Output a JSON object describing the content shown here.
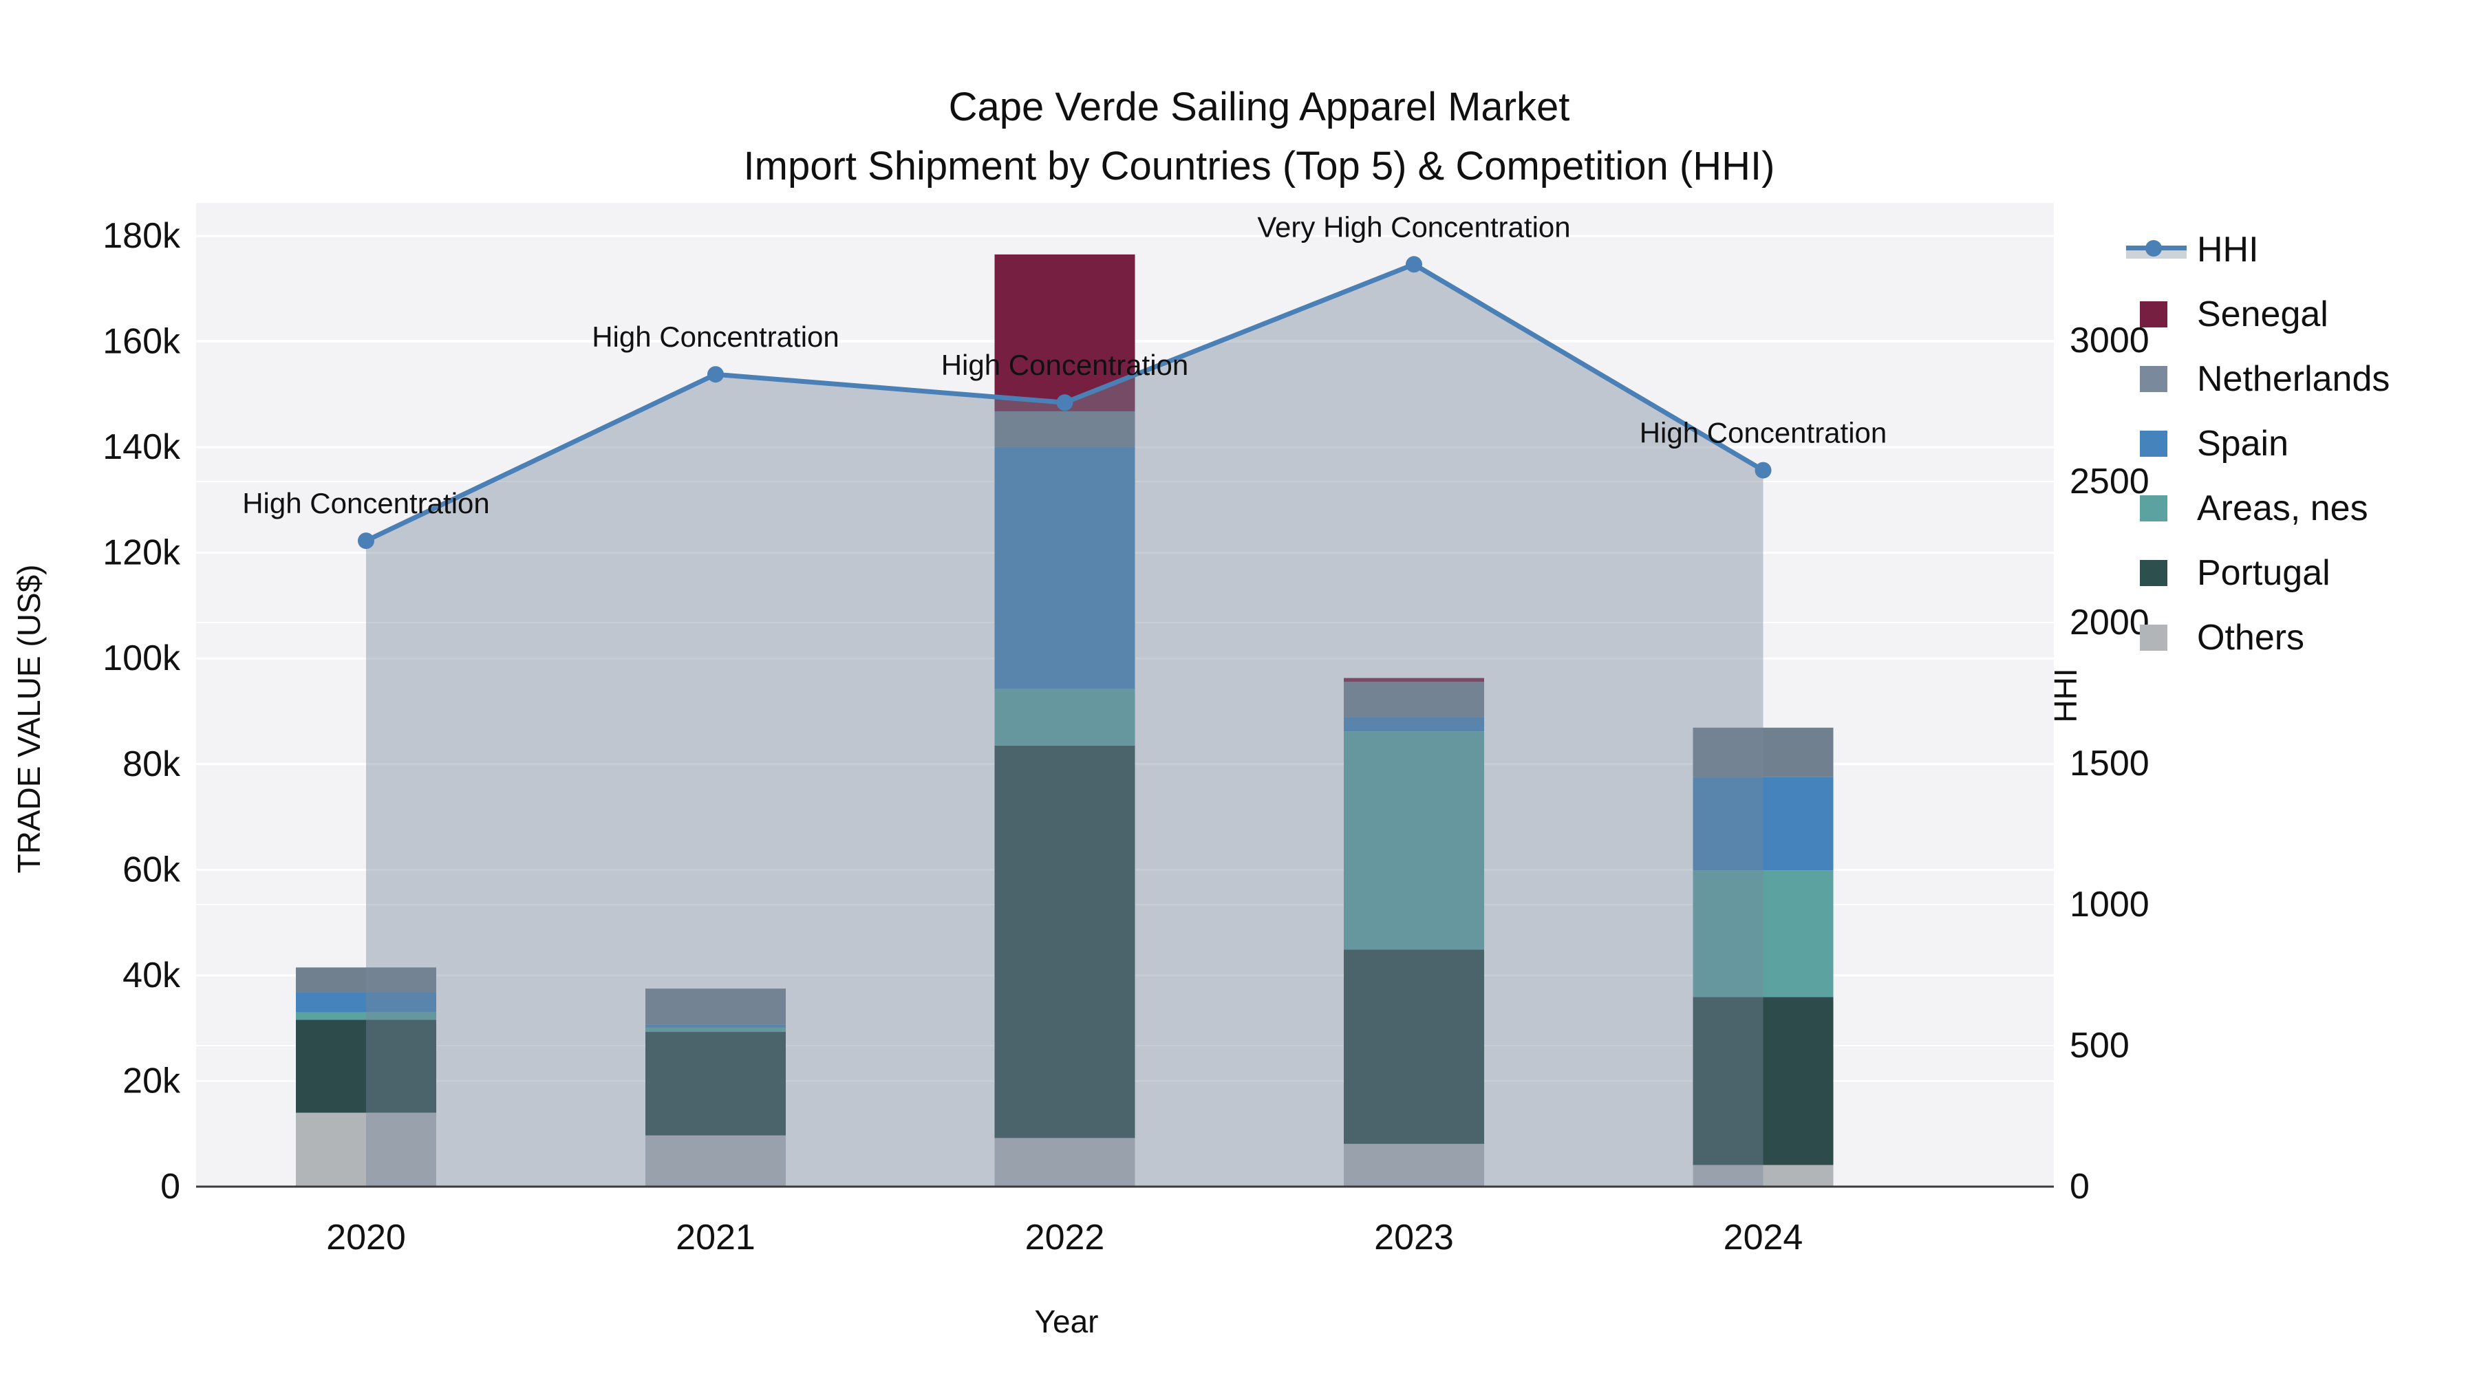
{
  "title": {
    "line1": "Cape Verde Sailing Apparel Market",
    "line2": "Import Shipment by Countries (Top 5) & Competition (HHI)"
  },
  "axes": {
    "y_left": {
      "title": "TRADE VALUE (US$)",
      "tick_labels": [
        "0",
        "20k",
        "40k",
        "60k",
        "80k",
        "100k",
        "120k",
        "140k",
        "160k",
        "180k"
      ],
      "tick_values": [
        0,
        20000,
        40000,
        60000,
        80000,
        100000,
        120000,
        140000,
        160000,
        180000
      ]
    },
    "y_right": {
      "title": "HHI",
      "tick_labels": [
        "0",
        "500",
        "1000",
        "1500",
        "2000",
        "2500",
        "3000"
      ],
      "tick_values": [
        0,
        500,
        1000,
        1500,
        2000,
        2500,
        3000
      ]
    },
    "x": {
      "title": "Year",
      "categories": [
        "2020",
        "2021",
        "2022",
        "2023",
        "2024"
      ]
    }
  },
  "legend": [
    {
      "label": "HHI",
      "type": "line",
      "color": "#4A80B5"
    },
    {
      "label": "Senegal",
      "type": "swatch",
      "color": "#761F41"
    },
    {
      "label": "Netherlands",
      "type": "swatch",
      "color": "#7A8A9C"
    },
    {
      "label": "Spain",
      "type": "swatch",
      "color": "#4483BB"
    },
    {
      "label": "Areas, nes",
      "type": "swatch",
      "color": "#5CA2A0"
    },
    {
      "label": "Portugal",
      "type": "swatch",
      "color": "#2D4F4E"
    },
    {
      "label": "Others",
      "type": "swatch",
      "color": "#B2B5B8"
    }
  ],
  "chart_data": {
    "type": "bar+line",
    "title": "Cape Verde Sailing Apparel Market — Import Shipment by Countries (Top 5) & Competition (HHI)",
    "xlabel": "Year",
    "ylabel_left": "TRADE VALUE (US$)",
    "ylabel_right": "HHI",
    "ylim_left": [
      0,
      186000
    ],
    "ylim_right": [
      0,
      3490
    ],
    "grid": true,
    "legend_position": "right",
    "categories": [
      "2020",
      "2021",
      "2022",
      "2023",
      "2024"
    ],
    "stack_series_bottom_to_top": [
      {
        "name": "Others",
        "color": "#B2B5B8",
        "values": [
          14000,
          9700,
          9200,
          8100,
          4100
        ]
      },
      {
        "name": "Portugal",
        "color": "#2C4B4A",
        "values": [
          17600,
          19600,
          74300,
          36800,
          31800
        ]
      },
      {
        "name": "Areas, nes",
        "color": "#5CA2A0",
        "values": [
          1400,
          800,
          10800,
          41300,
          24000
        ]
      },
      {
        "name": "Spain",
        "color": "#4483BB",
        "values": [
          3800,
          600,
          45800,
          2700,
          17700
        ]
      },
      {
        "name": "Netherlands",
        "color": "#70808F",
        "values": [
          4700,
          6800,
          6700,
          6700,
          9300
        ]
      },
      {
        "name": "Senegal",
        "color": "#761F41",
        "values": [
          0,
          0,
          29700,
          700,
          0
        ]
      }
    ],
    "bar_totals": [
      41500,
      37500,
      176500,
      96300,
      86900
    ],
    "line_series": {
      "name": "HHI",
      "color": "#4A80B5",
      "fill_color": "rgba(120,135,155,0.42)",
      "values": [
        2290,
        2880,
        2780,
        3270,
        2540
      ],
      "annotations": [
        "High Concentration",
        "High Concentration",
        "High Concentration",
        "Very High Concentration",
        "High Concentration"
      ]
    }
  },
  "style": {
    "plot_bg": "#F3F3F5",
    "grid_color": "#FFFFFF",
    "axis_line_color": "#3B3B3B",
    "text_color": "#111111"
  }
}
